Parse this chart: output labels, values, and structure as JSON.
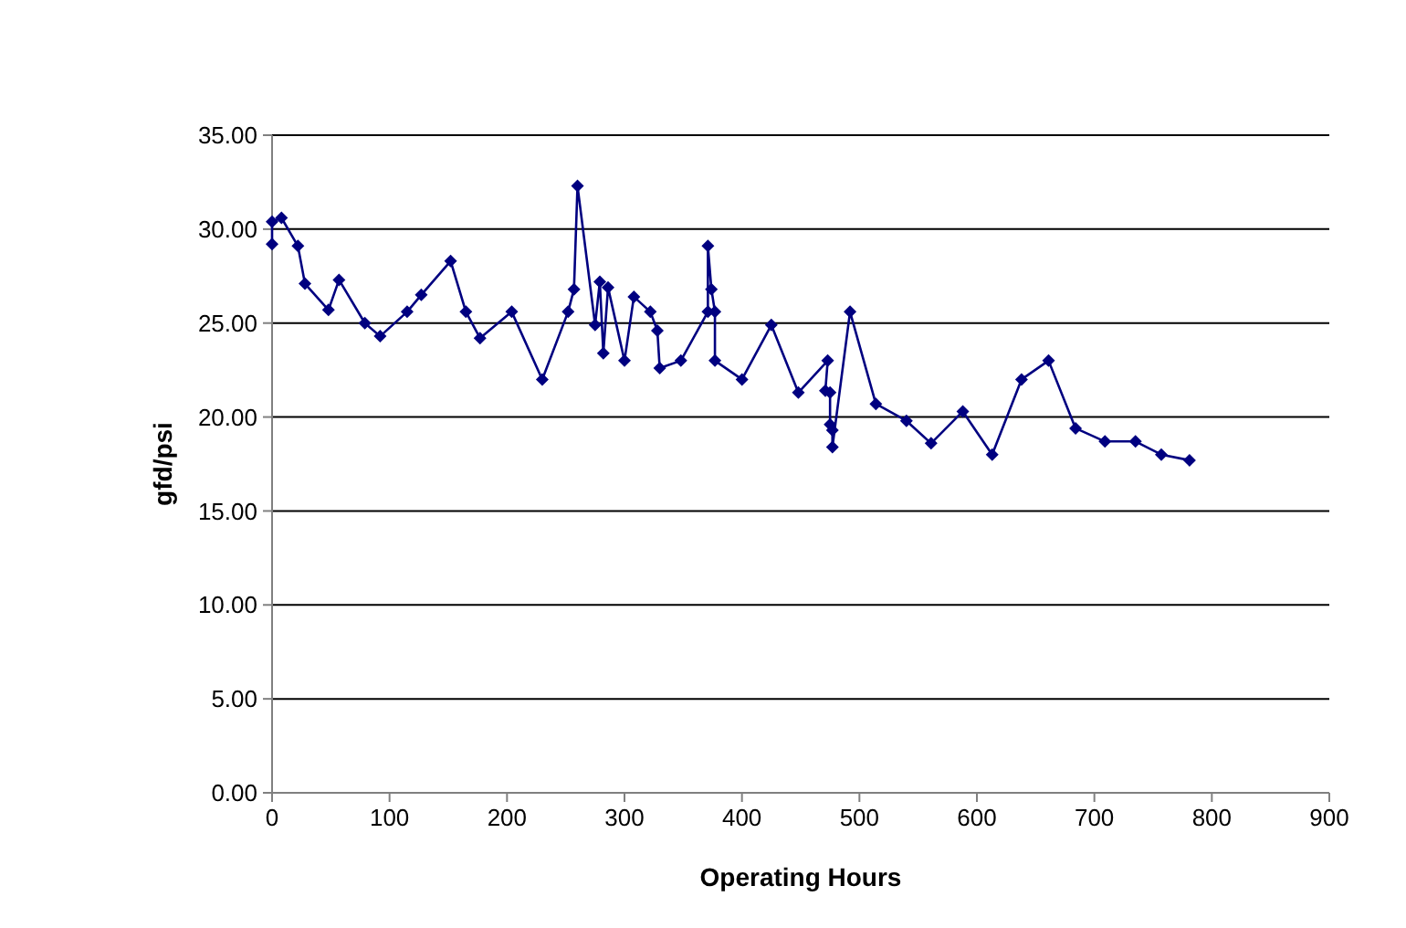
{
  "chart_data": {
    "type": "line",
    "xlabel": "Operating Hours",
    "ylabel": "gfd/psi",
    "marker": "diamond",
    "grid": "y",
    "x": [
      0,
      0,
      8,
      22,
      28,
      48,
      57,
      79,
      92,
      115,
      127,
      152,
      165,
      177,
      204,
      230,
      252,
      257,
      260,
      275,
      279,
      282,
      286,
      300,
      308,
      322,
      328,
      330,
      348,
      371,
      371,
      374,
      377,
      377,
      400,
      425,
      448,
      473,
      471,
      475,
      475,
      477,
      477,
      492,
      514,
      540,
      561,
      588,
      613,
      638,
      661,
      684,
      709,
      735,
      757,
      781
    ],
    "series": [
      {
        "color": "#000080",
        "values": [
          29.2,
          30.4,
          30.6,
          29.1,
          27.1,
          25.7,
          27.3,
          25.0,
          24.3,
          25.6,
          26.5,
          28.3,
          25.6,
          24.2,
          25.6,
          22.0,
          25.6,
          26.8,
          32.3,
          24.9,
          27.2,
          23.4,
          26.9,
          23.0,
          26.4,
          25.6,
          24.6,
          22.6,
          23.0,
          25.6,
          29.1,
          26.8,
          25.6,
          23.0,
          22.0,
          24.9,
          21.3,
          23.0,
          21.4,
          21.3,
          19.6,
          19.3,
          18.4,
          25.6,
          20.7,
          19.8,
          18.6,
          20.3,
          18.0,
          22.0,
          23.0,
          19.4,
          18.7,
          18.7,
          18.0,
          17.7
        ]
      }
    ],
    "xlim": [
      0,
      900
    ],
    "xticks": [
      0,
      100,
      200,
      300,
      400,
      500,
      600,
      700,
      800,
      900
    ],
    "ylim": [
      0,
      35
    ],
    "yticks": [
      {
        "value": 0,
        "label": "0.00"
      },
      {
        "value": 5,
        "label": "5.00"
      },
      {
        "value": 10,
        "label": "10.00"
      },
      {
        "value": 15,
        "label": "15.00"
      },
      {
        "value": 20,
        "label": "20.00"
      },
      {
        "value": 25,
        "label": "25.00"
      },
      {
        "value": 30,
        "label": "30.00"
      },
      {
        "value": 35,
        "label": "35.00"
      }
    ]
  }
}
